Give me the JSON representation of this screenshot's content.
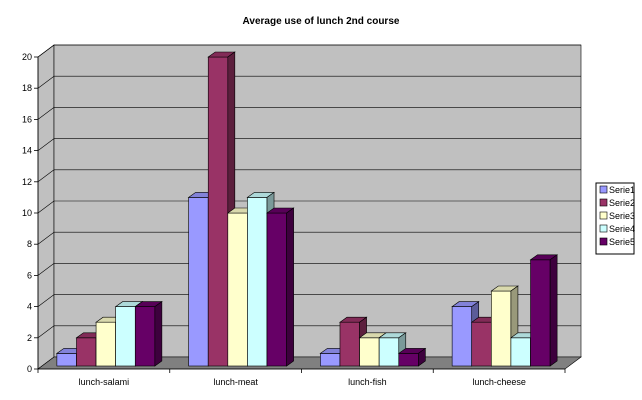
{
  "chart_data": {
    "type": "bar",
    "title": "Average use of lunch 2nd course",
    "xlabel": "",
    "ylabel": "",
    "categories": [
      "lunch-salami",
      "lunch-meat",
      "lunch-fish",
      "lunch-cheese"
    ],
    "series": [
      {
        "name": "Serie1",
        "values": [
          1,
          11,
          1,
          4
        ]
      },
      {
        "name": "Serie2",
        "values": [
          2,
          20,
          3,
          3
        ]
      },
      {
        "name": "Serie3",
        "values": [
          3,
          10,
          2,
          5
        ]
      },
      {
        "name": "Serie4",
        "values": [
          4,
          11,
          2,
          2
        ]
      },
      {
        "name": "Serie5",
        "values": [
          4,
          10,
          1,
          7
        ]
      }
    ],
    "ylim": [
      0,
      20
    ],
    "yticks": [
      "0",
      "2",
      "4",
      "6",
      "8",
      "10",
      "12",
      "14",
      "16",
      "18",
      "20"
    ],
    "grid": true,
    "legend": "right",
    "colors": [
      "#9999ff",
      "#993366",
      "#ffffcc",
      "#ccffff",
      "#660066"
    ],
    "wall_color": "#c0c0c0",
    "floor_color": "#808080"
  }
}
